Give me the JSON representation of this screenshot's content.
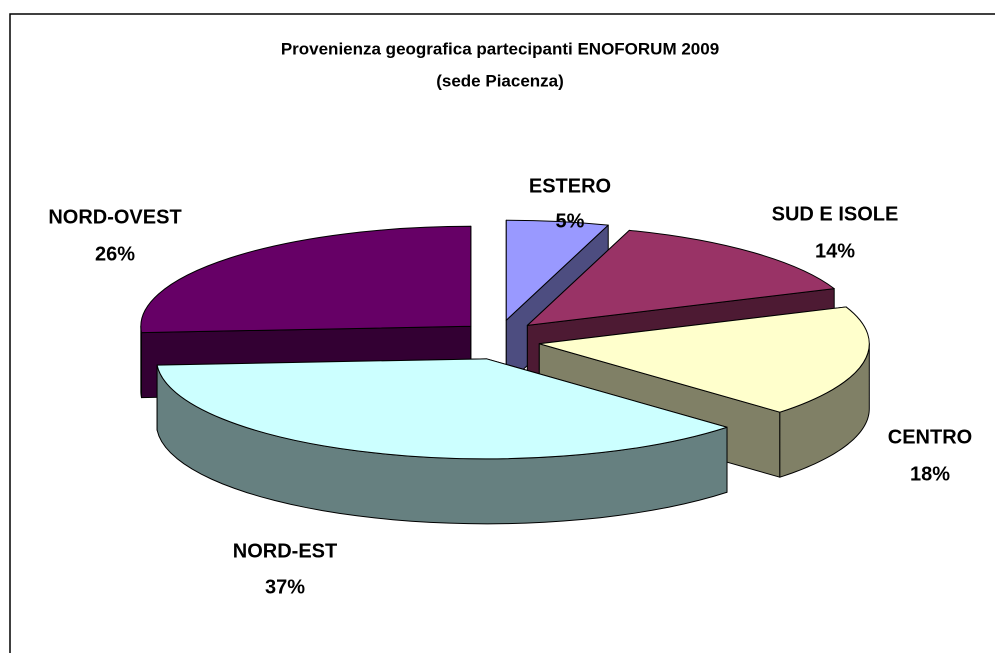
{
  "chart_data": {
    "type": "pie3d",
    "title": "Provenienza geografica partecipanti ENOFORUM 2009",
    "subtitle": "(sede Piacenza)",
    "categories": [
      "ESTERO",
      "SUD E ISOLE",
      "CENTRO",
      "NORD-EST",
      "NORD-OVEST"
    ],
    "values": [
      5,
      14,
      18,
      37,
      26
    ],
    "value_labels": [
      "5%",
      "14%",
      "18%",
      "37%",
      "26%"
    ],
    "colors": [
      "#9999ff",
      "#993366",
      "#ffffcc",
      "#ccffff",
      "#660066"
    ]
  }
}
